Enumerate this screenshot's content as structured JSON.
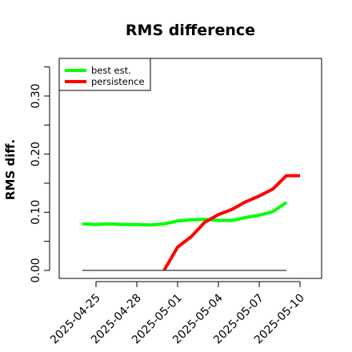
{
  "chart_data": {
    "type": "line",
    "title": "RMS difference",
    "xlabel": "",
    "ylabel": "RMS diff.",
    "x": [
      "2025-04-24",
      "2025-04-25",
      "2025-04-26",
      "2025-04-27",
      "2025-04-28",
      "2025-04-29",
      "2025-04-30",
      "2025-05-01",
      "2025-05-02",
      "2025-05-03",
      "2025-05-04",
      "2025-05-05",
      "2025-05-06",
      "2025-05-07",
      "2025-05-08",
      "2025-05-09",
      "2025-05-10"
    ],
    "x_tick_labels": [
      "2025-04-25",
      "2025-04-28",
      "2025-05-01",
      "2025-05-04",
      "2025-05-07",
      "2025-05-10"
    ],
    "y_tick_labels": [
      "0.00",
      "0.10",
      "0.20",
      "0.30"
    ],
    "ylim": [
      -0.01,
      0.365
    ],
    "series": [
      {
        "name": "best est.",
        "color": "#00ff00",
        "values": [
          0.08,
          0.079,
          0.08,
          0.079,
          0.079,
          0.078,
          0.08,
          0.085,
          0.087,
          0.088,
          0.086,
          0.086,
          0.091,
          0.095,
          0.101,
          0.117,
          null
        ]
      },
      {
        "name": "persistence",
        "color": "#ff0000",
        "values": [
          null,
          null,
          null,
          null,
          null,
          null,
          0.0,
          0.04,
          0.058,
          0.083,
          0.096,
          0.105,
          0.118,
          0.128,
          0.14,
          0.163,
          0.163
        ]
      },
      {
        "name": "",
        "color": "#555555",
        "values": [
          0.0,
          0.0,
          0.0,
          0.0,
          0.0,
          0.0,
          0.0,
          0.0,
          0.0,
          0.0,
          0.0,
          0.0,
          0.0,
          0.0,
          0.0,
          0.0,
          null
        ]
      }
    ],
    "legend": {
      "placement": "top-left",
      "entries": [
        "best est.",
        "persistence"
      ]
    },
    "grid": false
  }
}
